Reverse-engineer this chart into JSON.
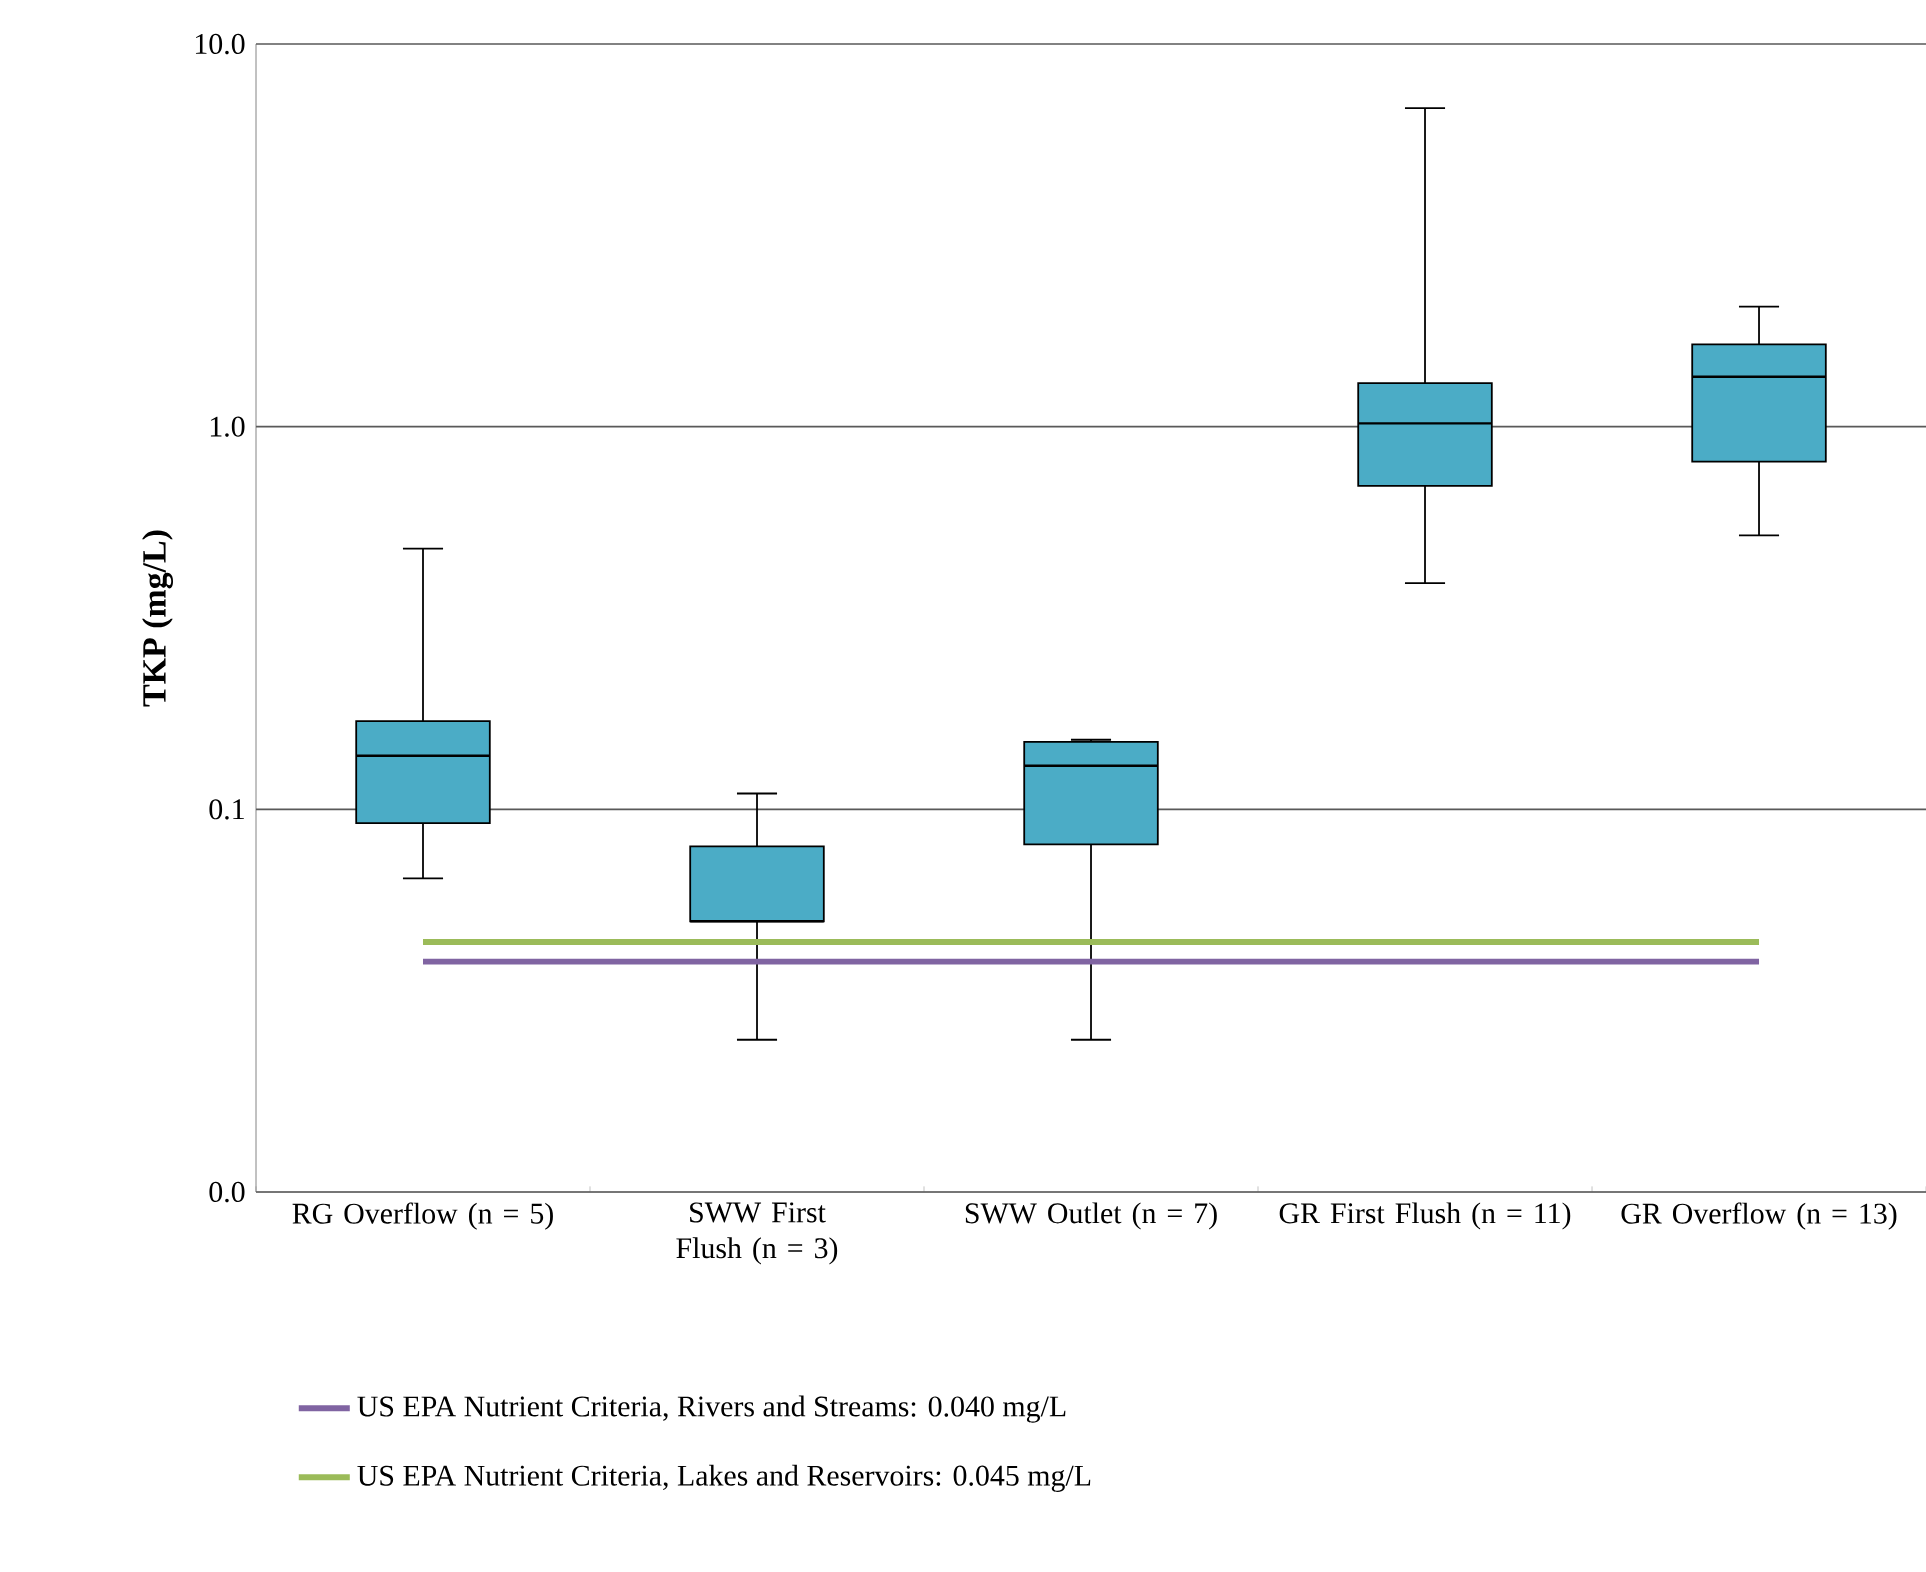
{
  "chart_data": {
    "type": "box",
    "ylabel": "TKP (mg/L)",
    "categories": [
      "RG Overflow (n = 5)",
      "SWW First Flush (n = 3)",
      "SWW Outlet (n = 7)",
      "GR First Flush (n = 11)",
      "GR Overflow (n = 13)"
    ],
    "color": "#4bacc6",
    "boxes": [
      {
        "low": 0.066,
        "q1": 0.092,
        "median": 0.138,
        "q3": 0.17,
        "high": 0.48
      },
      {
        "low": 0.025,
        "q1": 0.051,
        "median": 0.051,
        "q3": 0.08,
        "high": 0.11
      },
      {
        "low": 0.025,
        "q1": 0.081,
        "median": 0.13,
        "q3": 0.15,
        "high": 0.152
      },
      {
        "low": 0.39,
        "q1": 0.7,
        "median": 1.02,
        "q3": 1.3,
        "high": 6.8
      },
      {
        "low": 0.52,
        "q1": 0.81,
        "median": 1.35,
        "q3": 1.64,
        "high": 2.06
      }
    ],
    "log": "y",
    "ylim": [
      0.01,
      10
    ],
    "yticks": [
      {
        "value": 0.01,
        "label": "0.0"
      },
      {
        "value": 0.1,
        "label": "0.1"
      },
      {
        "value": 1,
        "label": "1.0"
      },
      {
        "value": 10,
        "label": "10.0"
      }
    ],
    "grid": "y",
    "legend": "bottom",
    "ref_lines": [
      {
        "axis": "y",
        "value": 0.04,
        "label": "US EPA Nutrient Criteria, Rivers and Streams: 0.040 mg/L",
        "color": "#8064a2"
      },
      {
        "axis": "y",
        "value": 0.045,
        "label": "US EPA Nutrient Criteria, Lakes and Reservoirs: 0.045 mg/L",
        "color": "#9bbb59"
      }
    ]
  }
}
